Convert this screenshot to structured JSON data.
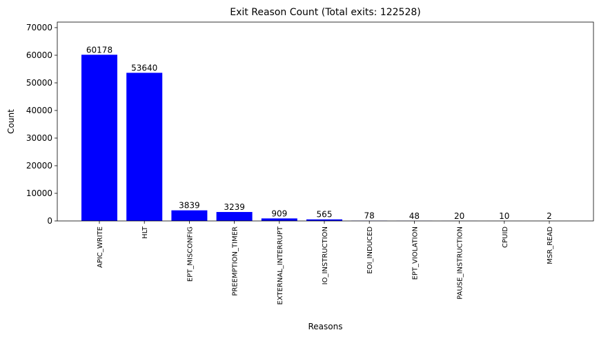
{
  "chart_data": {
    "type": "bar",
    "title": "Exit Reason Count (Total exits: 122528)",
    "xlabel": "Reasons",
    "ylabel": "Count",
    "ylim": [
      0,
      72000
    ],
    "yticks": [
      0,
      10000,
      20000,
      30000,
      40000,
      50000,
      60000,
      70000
    ],
    "categories": [
      "APIC_WRITE",
      "HLT",
      "EPT_MISCONFIG",
      "PREEMPTION_TIMER",
      "EXTERNAL_INTERRUPT",
      "IO_INSTRUCTION",
      "EOI_INDUCED",
      "EPT_VIOLATION",
      "PAUSE_INSTRUCTION",
      "CPUID",
      "MSR_READ"
    ],
    "values": [
      60178,
      53640,
      3839,
      3239,
      909,
      565,
      78,
      48,
      20,
      10,
      2
    ],
    "bar_color": "#0000ff",
    "grid": false
  }
}
